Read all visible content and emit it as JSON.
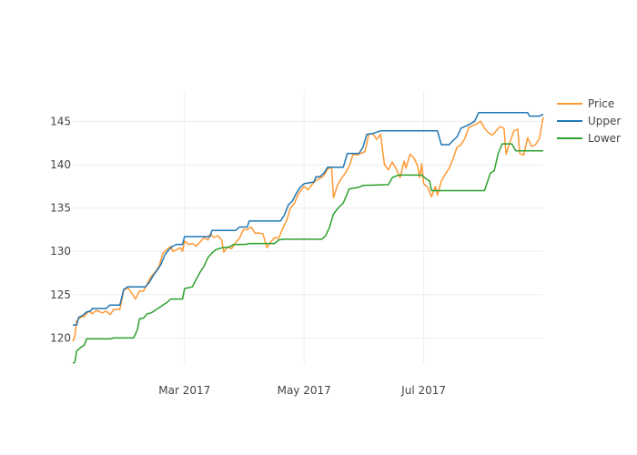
{
  "chart_data": {
    "type": "line",
    "title": "",
    "xlabel": "",
    "ylabel": "",
    "grid": true,
    "legend_position": "top-right",
    "xlim": [
      "2017-01-03",
      "2017-08-31"
    ],
    "ylim": [
      117,
      148.5
    ],
    "x_ticks": [
      {
        "date": "2017-03-01",
        "label": "Mar 2017"
      },
      {
        "date": "2017-05-01",
        "label": "May 2017"
      },
      {
        "date": "2017-07-01",
        "label": "Jul 2017"
      }
    ],
    "y_ticks": [
      120,
      125,
      130,
      135,
      140,
      145
    ],
    "series": [
      {
        "name": "Price",
        "color": "#ff9933",
        "points": [
          [
            "2017-01-03",
            119.6
          ],
          [
            "2017-01-04",
            120.2
          ],
          [
            "2017-01-05",
            122.0
          ],
          [
            "2017-01-07",
            122.4
          ],
          [
            "2017-01-09",
            122.5
          ],
          [
            "2017-01-11",
            123.1
          ],
          [
            "2017-01-13",
            122.8
          ],
          [
            "2017-01-15",
            123.2
          ],
          [
            "2017-01-18",
            122.9
          ],
          [
            "2017-01-20",
            123.1
          ],
          [
            "2017-01-22",
            122.7
          ],
          [
            "2017-01-24",
            123.3
          ],
          [
            "2017-01-27",
            123.3
          ],
          [
            "2017-01-29",
            125.5
          ],
          [
            "2017-01-31",
            125.8
          ],
          [
            "2017-02-02",
            125.2
          ],
          [
            "2017-02-04",
            124.5
          ],
          [
            "2017-02-06",
            125.4
          ],
          [
            "2017-02-08",
            125.4
          ],
          [
            "2017-02-10",
            126.3
          ],
          [
            "2017-02-12",
            127.1
          ],
          [
            "2017-02-14",
            127.6
          ],
          [
            "2017-02-16",
            128.3
          ],
          [
            "2017-02-18",
            129.8
          ],
          [
            "2017-02-20",
            130.2
          ],
          [
            "2017-02-22",
            130.6
          ],
          [
            "2017-02-23",
            130.0
          ],
          [
            "2017-02-25",
            130.2
          ],
          [
            "2017-02-27",
            130.4
          ],
          [
            "2017-02-28",
            130.0
          ],
          [
            "2017-03-01",
            131.2
          ],
          [
            "2017-03-03",
            130.8
          ],
          [
            "2017-03-05",
            130.9
          ],
          [
            "2017-03-07",
            130.6
          ],
          [
            "2017-03-09",
            131.1
          ],
          [
            "2017-03-11",
            131.6
          ],
          [
            "2017-03-13",
            131.3
          ],
          [
            "2017-03-14",
            132.0
          ],
          [
            "2017-03-16",
            131.6
          ],
          [
            "2017-03-18",
            131.8
          ],
          [
            "2017-03-20",
            131.3
          ],
          [
            "2017-03-21",
            129.9
          ],
          [
            "2017-03-23",
            130.5
          ],
          [
            "2017-03-25",
            130.3
          ],
          [
            "2017-03-27",
            131.0
          ],
          [
            "2017-03-29",
            131.5
          ],
          [
            "2017-03-31",
            132.5
          ],
          [
            "2017-04-02",
            132.5
          ],
          [
            "2017-04-04",
            132.8
          ],
          [
            "2017-04-06",
            132.1
          ],
          [
            "2017-04-08",
            132.1
          ],
          [
            "2017-04-10",
            132.0
          ],
          [
            "2017-04-12",
            130.4
          ],
          [
            "2017-04-14",
            131.1
          ],
          [
            "2017-04-16",
            131.6
          ],
          [
            "2017-04-18",
            131.5
          ],
          [
            "2017-04-20",
            132.6
          ],
          [
            "2017-04-22",
            133.5
          ],
          [
            "2017-04-24",
            135.0
          ],
          [
            "2017-04-26",
            135.5
          ],
          [
            "2017-04-28",
            136.6
          ],
          [
            "2017-04-30",
            137.2
          ],
          [
            "2017-05-01",
            137.5
          ],
          [
            "2017-05-03",
            137.1
          ],
          [
            "2017-05-05",
            137.7
          ],
          [
            "2017-05-07",
            138.2
          ],
          [
            "2017-05-09",
            138.4
          ],
          [
            "2017-05-11",
            138.7
          ],
          [
            "2017-05-13",
            139.5
          ],
          [
            "2017-05-15",
            139.7
          ],
          [
            "2017-05-16",
            136.2
          ],
          [
            "2017-05-18",
            137.6
          ],
          [
            "2017-05-20",
            138.4
          ],
          [
            "2017-05-22",
            139.0
          ],
          [
            "2017-05-24",
            139.8
          ],
          [
            "2017-05-26",
            141.2
          ],
          [
            "2017-05-28",
            141.1
          ],
          [
            "2017-05-30",
            141.3
          ],
          [
            "2017-06-01",
            141.5
          ],
          [
            "2017-06-03",
            143.5
          ],
          [
            "2017-06-05",
            143.6
          ],
          [
            "2017-06-07",
            142.9
          ],
          [
            "2017-06-09",
            143.5
          ],
          [
            "2017-06-11",
            140.0
          ],
          [
            "2017-06-13",
            139.4
          ],
          [
            "2017-06-15",
            140.3
          ],
          [
            "2017-06-17",
            139.5
          ],
          [
            "2017-06-19",
            138.5
          ],
          [
            "2017-06-21",
            140.4
          ],
          [
            "2017-06-22",
            139.6
          ],
          [
            "2017-06-24",
            141.2
          ],
          [
            "2017-06-26",
            140.8
          ],
          [
            "2017-06-28",
            139.8
          ],
          [
            "2017-06-29",
            138.5
          ],
          [
            "2017-06-30",
            140.1
          ],
          [
            "2017-07-01",
            137.8
          ],
          [
            "2017-07-03",
            137.4
          ],
          [
            "2017-07-05",
            136.3
          ],
          [
            "2017-07-07",
            137.5
          ],
          [
            "2017-07-08",
            136.5
          ],
          [
            "2017-07-10",
            138.1
          ],
          [
            "2017-07-12",
            138.9
          ],
          [
            "2017-07-14",
            139.6
          ],
          [
            "2017-07-16",
            140.7
          ],
          [
            "2017-07-18",
            142.0
          ],
          [
            "2017-07-20",
            142.3
          ],
          [
            "2017-07-22",
            143.0
          ],
          [
            "2017-07-24",
            144.3
          ],
          [
            "2017-07-26",
            144.5
          ],
          [
            "2017-07-28",
            144.7
          ],
          [
            "2017-07-30",
            145.0
          ],
          [
            "2017-08-01",
            144.2
          ],
          [
            "2017-08-03",
            143.7
          ],
          [
            "2017-08-05",
            143.4
          ],
          [
            "2017-08-07",
            143.9
          ],
          [
            "2017-08-09",
            144.4
          ],
          [
            "2017-08-11",
            144.2
          ],
          [
            "2017-08-12",
            141.2
          ],
          [
            "2017-08-14",
            142.6
          ],
          [
            "2017-08-16",
            143.9
          ],
          [
            "2017-08-18",
            144.1
          ],
          [
            "2017-08-19",
            141.3
          ],
          [
            "2017-08-21",
            141.1
          ],
          [
            "2017-08-23",
            143.1
          ],
          [
            "2017-08-25",
            142.1
          ],
          [
            "2017-08-27",
            142.3
          ],
          [
            "2017-08-29",
            143.0
          ],
          [
            "2017-08-31",
            145.5
          ]
        ]
      },
      {
        "name": "Upper",
        "color": "#1f77b4",
        "points": [
          [
            "2017-01-03",
            121.5
          ],
          [
            "2017-01-05",
            121.5
          ],
          [
            "2017-01-06",
            122.4
          ],
          [
            "2017-01-08",
            122.6
          ],
          [
            "2017-01-10",
            123.0
          ],
          [
            "2017-01-12",
            123.1
          ],
          [
            "2017-01-13",
            123.4
          ],
          [
            "2017-01-20",
            123.4
          ],
          [
            "2017-01-22",
            123.8
          ],
          [
            "2017-01-27",
            123.8
          ],
          [
            "2017-01-29",
            125.6
          ],
          [
            "2017-01-31",
            125.9
          ],
          [
            "2017-02-09",
            125.9
          ],
          [
            "2017-02-11",
            126.4
          ],
          [
            "2017-02-13",
            127.2
          ],
          [
            "2017-02-15",
            127.8
          ],
          [
            "2017-02-17",
            128.5
          ],
          [
            "2017-02-19",
            129.6
          ],
          [
            "2017-02-21",
            130.2
          ],
          [
            "2017-02-23",
            130.6
          ],
          [
            "2017-02-25",
            130.8
          ],
          [
            "2017-02-28",
            130.8
          ],
          [
            "2017-03-01",
            131.7
          ],
          [
            "2017-03-14",
            131.7
          ],
          [
            "2017-03-15",
            132.4
          ],
          [
            "2017-03-27",
            132.4
          ],
          [
            "2017-03-29",
            132.8
          ],
          [
            "2017-04-02",
            132.8
          ],
          [
            "2017-04-03",
            133.5
          ],
          [
            "2017-04-19",
            133.5
          ],
          [
            "2017-04-21",
            134.2
          ],
          [
            "2017-04-23",
            135.4
          ],
          [
            "2017-04-25",
            135.8
          ],
          [
            "2017-04-27",
            136.7
          ],
          [
            "2017-04-29",
            137.4
          ],
          [
            "2017-05-01",
            137.8
          ],
          [
            "2017-05-06",
            138.0
          ],
          [
            "2017-05-07",
            138.6
          ],
          [
            "2017-05-09",
            138.6
          ],
          [
            "2017-05-11",
            139.0
          ],
          [
            "2017-05-13",
            139.7
          ],
          [
            "2017-05-21",
            139.7
          ],
          [
            "2017-05-23",
            141.3
          ],
          [
            "2017-05-29",
            141.3
          ],
          [
            "2017-05-31",
            142.0
          ],
          [
            "2017-06-02",
            143.5
          ],
          [
            "2017-06-05",
            143.6
          ],
          [
            "2017-06-09",
            143.9
          ],
          [
            "2017-07-08",
            143.9
          ],
          [
            "2017-07-10",
            142.3
          ],
          [
            "2017-07-14",
            142.3
          ],
          [
            "2017-07-16",
            142.8
          ],
          [
            "2017-07-18",
            143.2
          ],
          [
            "2017-07-20",
            144.2
          ],
          [
            "2017-07-24",
            144.6
          ],
          [
            "2017-07-27",
            145.0
          ],
          [
            "2017-07-29",
            146.0
          ],
          [
            "2017-08-23",
            146.0
          ],
          [
            "2017-08-24",
            145.6
          ],
          [
            "2017-08-29",
            145.6
          ],
          [
            "2017-08-31",
            145.8
          ]
        ]
      },
      {
        "name": "Lower",
        "color": "#2ca02c",
        "points": [
          [
            "2017-01-03",
            117.1
          ],
          [
            "2017-01-04",
            117.2
          ],
          [
            "2017-01-05",
            118.5
          ],
          [
            "2017-01-07",
            118.9
          ],
          [
            "2017-01-09",
            119.2
          ],
          [
            "2017-01-10",
            119.9
          ],
          [
            "2017-01-22",
            119.9
          ],
          [
            "2017-01-24",
            120.0
          ],
          [
            "2017-02-03",
            120.0
          ],
          [
            "2017-02-05",
            121.0
          ],
          [
            "2017-02-06",
            122.2
          ],
          [
            "2017-02-08",
            122.3
          ],
          [
            "2017-02-10",
            122.8
          ],
          [
            "2017-02-12",
            122.9
          ],
          [
            "2017-02-14",
            123.2
          ],
          [
            "2017-02-16",
            123.5
          ],
          [
            "2017-02-18",
            123.8
          ],
          [
            "2017-02-20",
            124.1
          ],
          [
            "2017-02-22",
            124.5
          ],
          [
            "2017-02-28",
            124.5
          ],
          [
            "2017-03-01",
            125.7
          ],
          [
            "2017-03-05",
            125.9
          ],
          [
            "2017-03-07",
            126.8
          ],
          [
            "2017-03-09",
            127.6
          ],
          [
            "2017-03-11",
            128.3
          ],
          [
            "2017-03-13",
            129.3
          ],
          [
            "2017-03-15",
            129.8
          ],
          [
            "2017-03-17",
            130.2
          ],
          [
            "2017-03-20",
            130.4
          ],
          [
            "2017-03-24",
            130.5
          ],
          [
            "2017-03-26",
            130.8
          ],
          [
            "2017-04-01",
            130.8
          ],
          [
            "2017-04-03",
            130.9
          ],
          [
            "2017-04-16",
            130.9
          ],
          [
            "2017-04-18",
            131.3
          ],
          [
            "2017-04-20",
            131.4
          ],
          [
            "2017-05-10",
            131.4
          ],
          [
            "2017-05-12",
            131.8
          ],
          [
            "2017-05-14",
            132.8
          ],
          [
            "2017-05-16",
            134.3
          ],
          [
            "2017-05-18",
            134.9
          ],
          [
            "2017-05-21",
            135.6
          ],
          [
            "2017-05-24",
            137.2
          ],
          [
            "2017-05-29",
            137.4
          ],
          [
            "2017-05-31",
            137.6
          ],
          [
            "2017-06-13",
            137.7
          ],
          [
            "2017-06-15",
            138.5
          ],
          [
            "2017-06-18",
            138.8
          ],
          [
            "2017-06-30",
            138.8
          ],
          [
            "2017-07-02",
            138.4
          ],
          [
            "2017-07-04",
            138.1
          ],
          [
            "2017-07-05",
            137.0
          ],
          [
            "2017-08-01",
            137.0
          ],
          [
            "2017-08-04",
            139.0
          ],
          [
            "2017-08-06",
            139.3
          ],
          [
            "2017-08-08",
            141.3
          ],
          [
            "2017-08-10",
            142.4
          ],
          [
            "2017-08-15",
            142.4
          ],
          [
            "2017-08-17",
            141.6
          ],
          [
            "2017-08-31",
            141.6
          ]
        ]
      }
    ]
  }
}
